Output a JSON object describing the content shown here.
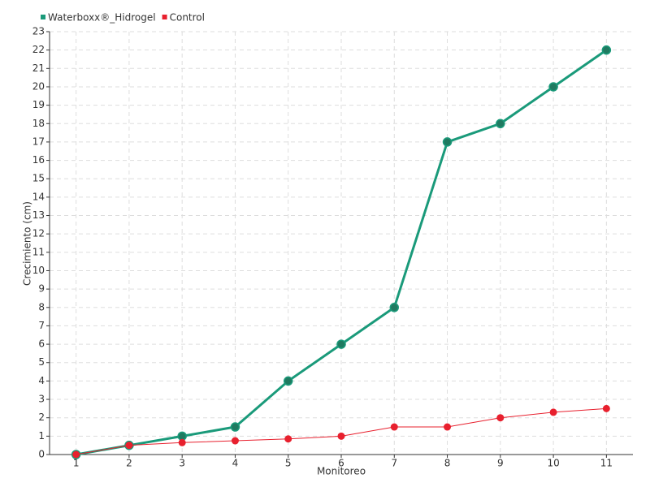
{
  "chart_data": {
    "type": "line",
    "categories": [
      "1",
      "2",
      "3",
      "4",
      "5",
      "6",
      "7",
      "8",
      "9",
      "10",
      "11"
    ],
    "series": [
      {
        "name": "Waterboxx®_Hidrogel",
        "color": "#1a9a7a",
        "values": [
          0,
          0.5,
          1,
          1.5,
          4,
          6,
          8,
          17,
          18,
          20,
          22
        ]
      },
      {
        "name": "Control",
        "color": "#e8202e",
        "values": [
          0,
          0.5,
          0.65,
          0.75,
          0.85,
          1,
          1.5,
          1.5,
          2,
          2.3,
          2.5
        ]
      }
    ],
    "ylim": [
      0,
      23
    ],
    "yticks": [
      0,
      1,
      2,
      3,
      4,
      5,
      6,
      7,
      8,
      9,
      10,
      11,
      12,
      13,
      14,
      15,
      16,
      17,
      18,
      19,
      20,
      21,
      22,
      23
    ],
    "y_label": "Crecimiento (cm)",
    "x_label": "Monitoreo",
    "grid": true,
    "legend": "top-left"
  }
}
